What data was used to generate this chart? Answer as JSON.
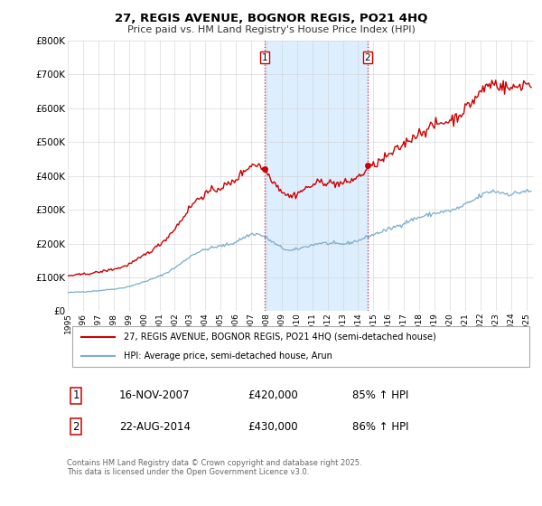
{
  "title": "27, REGIS AVENUE, BOGNOR REGIS, PO21 4HQ",
  "subtitle": "Price paid vs. HM Land Registry's House Price Index (HPI)",
  "legend_line1": "27, REGIS AVENUE, BOGNOR REGIS, PO21 4HQ (semi-detached house)",
  "legend_line2": "HPI: Average price, semi-detached house, Arun",
  "transaction1_date": "16-NOV-2007",
  "transaction1_price": "£420,000",
  "transaction1_hpi": "85% ↑ HPI",
  "transaction1_year": 2007.875,
  "transaction1_price_val": 420000,
  "transaction2_date": "22-AUG-2014",
  "transaction2_price": "£430,000",
  "transaction2_hpi": "86% ↑ HPI",
  "transaction2_year": 2014.625,
  "transaction2_price_val": 430000,
  "footer": "Contains HM Land Registry data © Crown copyright and database right 2025.\nThis data is licensed under the Open Government Licence v3.0.",
  "property_color": "#cc0000",
  "hpi_color": "#7aadcc",
  "shade_color": "#ddeeff",
  "vline_color": "#cc0000",
  "xmin": 1995.0,
  "xmax": 2025.5,
  "ymin": 0,
  "ymax": 800000,
  "yticks": [
    0,
    100000,
    200000,
    300000,
    400000,
    500000,
    600000,
    700000,
    800000
  ],
  "ylabels": [
    "£0",
    "£100K",
    "£200K",
    "£300K",
    "£400K",
    "£500K",
    "£600K",
    "£700K",
    "£800K"
  ]
}
